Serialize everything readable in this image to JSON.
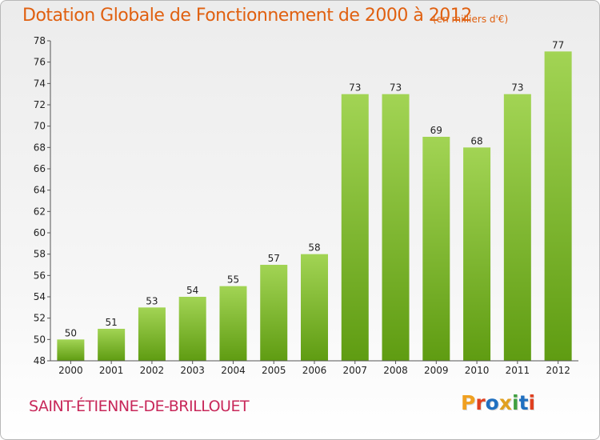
{
  "header": {
    "title": "Dotation Globale de Fonctionnement de 2000 à 2012",
    "subtitle": "(en milliers d'€)"
  },
  "footer": {
    "commune": "SAINT-ÉTIENNE-DE-BRILLOUET",
    "brand": "Proxiti",
    "brand_colors": [
      "#f0a020",
      "#e04020",
      "#2070c0",
      "#e0a020",
      "#40a040",
      "#2070c0",
      "#e04020"
    ]
  },
  "colors": {
    "bar_light": "#a2d454",
    "bar_dark": "#5f9c12",
    "axis": "#555555",
    "text": "#222222"
  },
  "chart_data": {
    "type": "bar",
    "title": "Dotation Globale de Fonctionnement de 2000 à 2012",
    "subtitle": "(en milliers d'€)",
    "xlabel": "",
    "ylabel": "",
    "categories": [
      "2000",
      "2001",
      "2002",
      "2003",
      "2004",
      "2005",
      "2006",
      "2007",
      "2008",
      "2009",
      "2010",
      "2011",
      "2012"
    ],
    "values": [
      50,
      51,
      53,
      54,
      55,
      57,
      58,
      73,
      73,
      69,
      68,
      73,
      77
    ],
    "ylim": [
      48,
      78
    ],
    "yticks": [
      48,
      50,
      52,
      54,
      56,
      58,
      60,
      62,
      64,
      66,
      68,
      70,
      72,
      74,
      76,
      78
    ],
    "grid": false,
    "legend": "none"
  }
}
